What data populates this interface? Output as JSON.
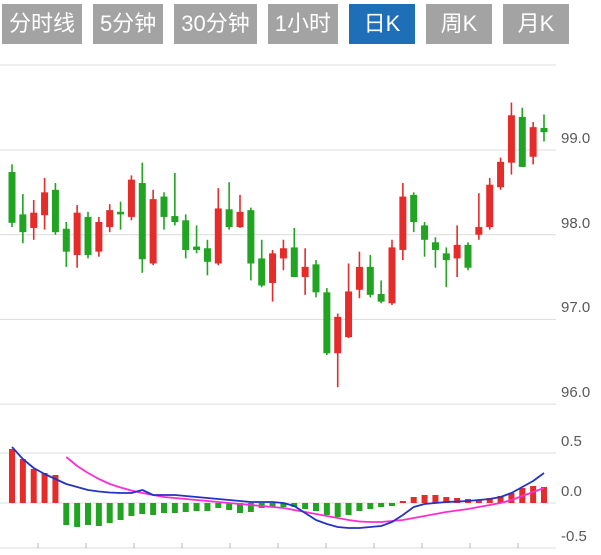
{
  "tabs": {
    "items": [
      {
        "key": "minute-line",
        "label": "分时线",
        "active": false
      },
      {
        "key": "5min",
        "label": "5分钟",
        "active": false
      },
      {
        "key": "30min",
        "label": "30分钟",
        "active": false
      },
      {
        "key": "1hour",
        "label": "1小时",
        "active": false
      },
      {
        "key": "daily-k",
        "label": "日K",
        "active": true
      },
      {
        "key": "weekly-k",
        "label": "周K",
        "active": false
      },
      {
        "key": "monthly-k",
        "label": "月K",
        "active": false
      }
    ]
  },
  "axis": {
    "price_labels": [
      "99.0",
      "98.0",
      "97.0",
      "96.0"
    ],
    "macd_labels": [
      "0.5",
      "0.0",
      "-0.5"
    ]
  },
  "colors": {
    "up_red": "#e62b2b",
    "down_green": "#21a421",
    "dif_line_blue": "#2333c4",
    "dea_line_magenta": "#fb2ed2",
    "grid": "#dcdcdc",
    "axis_label": "#595959",
    "tab_bg": "#a3a3a3",
    "tab_active_bg": "#1f6eb8",
    "tab_text": "#ffffff"
  },
  "chart_data": {
    "type": "candlestick+macd",
    "title": "",
    "legend": "none",
    "grid": "horizontal-only",
    "convention": "chinese (red = bullish/up, green = bearish/down)",
    "price_axis": {
      "side": "right",
      "ticks": [
        99.0,
        98.0,
        97.0,
        96.0
      ],
      "range_visible": [
        96.0,
        100.0
      ]
    },
    "macd_axis": {
      "side": "right",
      "ticks": [
        0.5,
        0.0,
        -0.5
      ],
      "range_visible": [
        -0.5,
        0.5
      ]
    },
    "candles": [
      {
        "o": 98.74,
        "c": 98.14,
        "h": 98.83,
        "l": 98.09
      },
      {
        "o": 98.24,
        "c": 98.03,
        "h": 98.48,
        "l": 97.9
      },
      {
        "o": 98.08,
        "c": 98.26,
        "h": 98.41,
        "l": 97.94
      },
      {
        "o": 98.23,
        "c": 98.5,
        "h": 98.67,
        "l": 98.06
      },
      {
        "o": 98.53,
        "c": 98.03,
        "h": 98.61,
        "l": 98.0
      },
      {
        "o": 98.07,
        "c": 97.8,
        "h": 98.15,
        "l": 97.62
      },
      {
        "o": 97.76,
        "c": 98.26,
        "h": 98.35,
        "l": 97.61
      },
      {
        "o": 98.21,
        "c": 97.76,
        "h": 98.27,
        "l": 97.72
      },
      {
        "o": 97.8,
        "c": 98.15,
        "h": 98.21,
        "l": 97.74
      },
      {
        "o": 98.09,
        "c": 98.29,
        "h": 98.36,
        "l": 98.03
      },
      {
        "o": 98.27,
        "c": 98.24,
        "h": 98.39,
        "l": 98.06
      },
      {
        "o": 98.21,
        "c": 98.65,
        "h": 98.7,
        "l": 98.17
      },
      {
        "o": 98.61,
        "c": 97.71,
        "h": 98.85,
        "l": 97.55
      },
      {
        "o": 97.66,
        "c": 98.42,
        "h": 98.53,
        "l": 97.64
      },
      {
        "o": 98.45,
        "c": 98.21,
        "h": 98.5,
        "l": 98.06
      },
      {
        "o": 98.22,
        "c": 98.15,
        "h": 98.73,
        "l": 98.11
      },
      {
        "o": 98.17,
        "c": 97.82,
        "h": 98.24,
        "l": 97.72
      },
      {
        "o": 97.86,
        "c": 97.82,
        "h": 98.11,
        "l": 97.78
      },
      {
        "o": 97.84,
        "c": 97.68,
        "h": 97.94,
        "l": 97.52
      },
      {
        "o": 97.66,
        "c": 98.31,
        "h": 98.55,
        "l": 97.64
      },
      {
        "o": 98.3,
        "c": 98.09,
        "h": 98.62,
        "l": 98.06
      },
      {
        "o": 98.09,
        "c": 98.27,
        "h": 98.47,
        "l": 98.08
      },
      {
        "o": 98.29,
        "c": 97.66,
        "h": 98.32,
        "l": 97.46
      },
      {
        "o": 97.72,
        "c": 97.4,
        "h": 97.94,
        "l": 97.38
      },
      {
        "o": 97.43,
        "c": 97.78,
        "h": 97.82,
        "l": 97.21
      },
      {
        "o": 97.72,
        "c": 97.84,
        "h": 97.94,
        "l": 97.58
      },
      {
        "o": 97.85,
        "c": 97.5,
        "h": 98.08,
        "l": 97.5
      },
      {
        "o": 97.5,
        "c": 97.62,
        "h": 97.84,
        "l": 97.29
      },
      {
        "o": 97.65,
        "c": 97.32,
        "h": 97.7,
        "l": 97.26
      },
      {
        "o": 97.32,
        "c": 96.6,
        "h": 97.37,
        "l": 96.58
      },
      {
        "o": 96.6,
        "c": 97.03,
        "h": 97.07,
        "l": 96.2
      },
      {
        "o": 96.79,
        "c": 97.33,
        "h": 97.66,
        "l": 96.78
      },
      {
        "o": 97.35,
        "c": 97.62,
        "h": 97.8,
        "l": 97.25
      },
      {
        "o": 97.62,
        "c": 97.29,
        "h": 97.76,
        "l": 97.26
      },
      {
        "o": 97.3,
        "c": 97.21,
        "h": 97.46,
        "l": 97.19
      },
      {
        "o": 97.19,
        "c": 97.85,
        "h": 97.94,
        "l": 97.17
      },
      {
        "o": 97.82,
        "c": 98.45,
        "h": 98.61,
        "l": 97.7
      },
      {
        "o": 98.47,
        "c": 98.15,
        "h": 98.5,
        "l": 98.03
      },
      {
        "o": 98.11,
        "c": 97.94,
        "h": 98.15,
        "l": 97.74
      },
      {
        "o": 97.91,
        "c": 97.82,
        "h": 97.97,
        "l": 97.61
      },
      {
        "o": 97.78,
        "c": 97.7,
        "h": 97.85,
        "l": 97.38
      },
      {
        "o": 97.72,
        "c": 97.88,
        "h": 98.11,
        "l": 97.5
      },
      {
        "o": 97.88,
        "c": 97.61,
        "h": 97.91,
        "l": 97.58
      },
      {
        "o": 98.0,
        "c": 98.09,
        "h": 98.49,
        "l": 97.94
      },
      {
        "o": 98.09,
        "c": 98.59,
        "h": 98.67,
        "l": 98.06
      },
      {
        "o": 98.56,
        "c": 98.86,
        "h": 98.91,
        "l": 98.53
      },
      {
        "o": 98.85,
        "c": 99.41,
        "h": 99.56,
        "l": 98.71
      },
      {
        "o": 99.39,
        "c": 98.8,
        "h": 99.5,
        "l": 98.8
      },
      {
        "o": 98.92,
        "c": 99.27,
        "h": 99.33,
        "l": 98.83
      },
      {
        "o": 99.26,
        "c": 99.21,
        "h": 99.42,
        "l": 99.1
      }
    ],
    "macd": {
      "histogram": [
        0.54,
        0.44,
        0.34,
        0.3,
        0.28,
        -0.22,
        -0.24,
        -0.22,
        -0.23,
        -0.2,
        -0.17,
        -0.13,
        -0.11,
        -0.12,
        -0.1,
        -0.1,
        -0.09,
        -0.08,
        -0.08,
        -0.05,
        -0.07,
        -0.1,
        -0.09,
        -0.05,
        -0.04,
        -0.04,
        -0.04,
        -0.06,
        -0.08,
        -0.12,
        -0.14,
        -0.12,
        -0.08,
        -0.06,
        -0.04,
        -0.03,
        0.02,
        0.06,
        0.08,
        0.08,
        0.06,
        0.05,
        0.04,
        0.03,
        0.05,
        0.07,
        0.1,
        0.15,
        0.17,
        0.16
      ],
      "dif": [
        0.56,
        0.44,
        0.35,
        0.29,
        0.24,
        0.19,
        0.16,
        0.13,
        0.115,
        0.105,
        0.1,
        0.1,
        0.13,
        0.08,
        0.08,
        0.08,
        0.07,
        0.06,
        0.05,
        0.04,
        0.03,
        0.02,
        0.01,
        0.01,
        0.01,
        0.0,
        -0.03,
        -0.1,
        -0.17,
        -0.21,
        -0.24,
        -0.25,
        -0.25,
        -0.24,
        -0.23,
        -0.19,
        -0.12,
        -0.04,
        -0.01,
        0.0,
        0.01,
        0.015,
        0.02,
        0.03,
        0.04,
        0.06,
        0.1,
        0.16,
        0.22,
        0.3
      ],
      "dea": [
        null,
        null,
        null,
        null,
        null,
        0.46,
        0.37,
        0.3,
        0.24,
        0.19,
        0.155,
        0.125,
        0.1,
        0.08,
        0.06,
        0.05,
        0.04,
        0.03,
        0.02,
        0.01,
        0.0,
        -0.01,
        -0.02,
        -0.03,
        -0.04,
        -0.05,
        -0.07,
        -0.09,
        -0.11,
        -0.13,
        -0.15,
        -0.17,
        -0.185,
        -0.19,
        -0.19,
        -0.18,
        -0.17,
        -0.15,
        -0.13,
        -0.11,
        -0.09,
        -0.075,
        -0.06,
        -0.04,
        -0.02,
        0.0,
        0.03,
        0.07,
        0.11,
        0.15
      ]
    }
  }
}
